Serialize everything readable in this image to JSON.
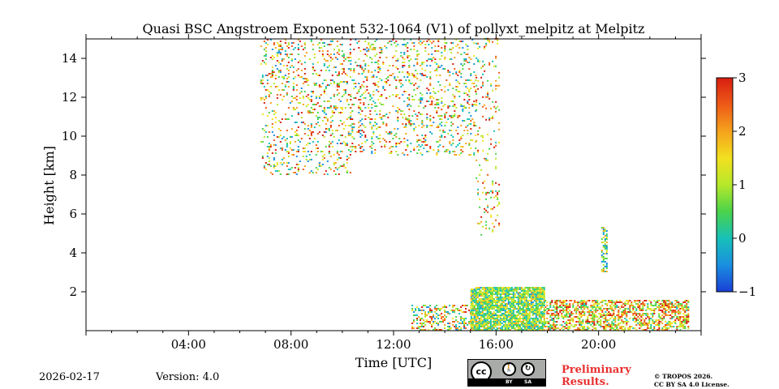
{
  "chart_data": {
    "type": "heatmap",
    "title": "Quasi BSC Angstroem Exponent 532-1064 (V1) of pollyxt_melpitz at Melpitz",
    "xlabel": "Time [UTC]",
    "ylabel": "Height [km]",
    "xlim_hours": [
      0,
      24
    ],
    "ylim_km": [
      0,
      15
    ],
    "x_ticks": [
      {
        "value": 4,
        "label": "04:00"
      },
      {
        "value": 8,
        "label": "08:00"
      },
      {
        "value": 12,
        "label": "12:00"
      },
      {
        "value": 16,
        "label": "16:00"
      },
      {
        "value": 20,
        "label": "20:00"
      }
    ],
    "y_ticks": [
      {
        "value": 2,
        "label": "2"
      },
      {
        "value": 4,
        "label": "4"
      },
      {
        "value": 6,
        "label": "6"
      },
      {
        "value": 8,
        "label": "8"
      },
      {
        "value": 10,
        "label": "10"
      },
      {
        "value": 12,
        "label": "12"
      },
      {
        "value": 14,
        "label": "14"
      }
    ],
    "colorbar": {
      "min": -1,
      "max": 3,
      "ticks": [
        {
          "value": 3,
          "label": "3"
        },
        {
          "value": 2,
          "label": "2"
        },
        {
          "value": 1,
          "label": "1"
        },
        {
          "value": 0,
          "label": "0"
        },
        {
          "value": -1,
          "label": "−1"
        }
      ],
      "colors": [
        "#1a3fd6",
        "#1a8fe0",
        "#18c0b8",
        "#4ad34a",
        "#b6e82a",
        "#f2e020",
        "#f5a21c",
        "#ee5a18",
        "#d81e10"
      ]
    },
    "regions": [
      {
        "name": "upper-scatter-morning",
        "t": [
          6.8,
          10.3
        ],
        "h": [
          8.0,
          15.0
        ],
        "value_range": [
          -0.5,
          3
        ],
        "density": 0.6
      },
      {
        "name": "upper-scatter-midday",
        "t": [
          10.3,
          15.2
        ],
        "h": [
          9.0,
          15.0
        ],
        "value_range": [
          -0.5,
          3
        ],
        "density": 0.65
      },
      {
        "name": "upper-scatter-column",
        "t": [
          15.2,
          16.1
        ],
        "h": [
          4.8,
          15.0
        ],
        "value_range": [
          0,
          3
        ],
        "density": 0.35
      },
      {
        "name": "boundary-layer-afternoon",
        "t": [
          15.0,
          17.9
        ],
        "h": [
          0.0,
          2.2
        ],
        "value_range": [
          -0.2,
          1.8
        ],
        "density": 0.85
      },
      {
        "name": "boundary-layer-late",
        "t": [
          17.9,
          23.5
        ],
        "h": [
          0.0,
          1.5
        ],
        "value_range": [
          0.2,
          3
        ],
        "density": 0.55
      },
      {
        "name": "low-scatter-morning",
        "t": [
          12.7,
          15.0
        ],
        "h": [
          0.0,
          1.3
        ],
        "value_range": [
          -0.5,
          3
        ],
        "density": 0.35
      },
      {
        "name": "cloud-column-20h",
        "t": [
          20.1,
          20.3
        ],
        "h": [
          3.0,
          5.3
        ],
        "value_range": [
          -0.5,
          2
        ],
        "density": 0.6
      }
    ]
  },
  "footer": {
    "date": "2026-02-17",
    "version": "Version: 4.0",
    "license_badge": {
      "by": "BY",
      "sa": "SA",
      "cc": "cc"
    },
    "preliminary": [
      "Preliminary",
      "Results."
    ],
    "copyright": [
      "© TROPOS 2026.",
      "CC BY SA 4.0 License."
    ]
  }
}
